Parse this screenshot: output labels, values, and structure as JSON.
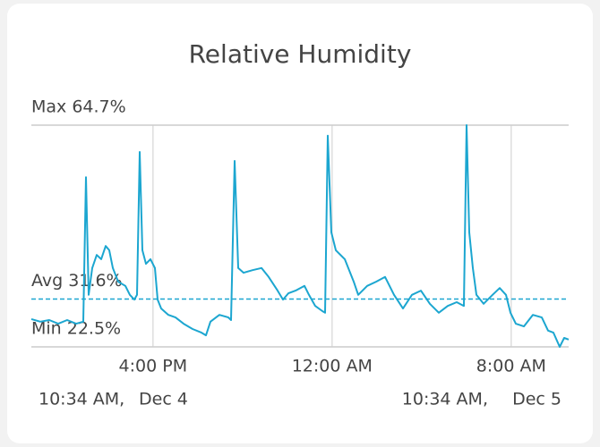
{
  "chart_data": {
    "type": "line",
    "title": "Relative Humidity",
    "color": "#1ca6d0",
    "x": [
      0,
      0.4,
      0.8,
      1.2,
      1.6,
      2.0,
      2.32,
      2.44,
      2.56,
      2.72,
      2.92,
      3.12,
      3.32,
      3.48,
      3.64,
      3.88,
      4.2,
      4.4,
      4.6,
      4.72,
      4.84,
      4.96,
      5.12,
      5.32,
      5.52,
      5.64,
      5.8,
      6.12,
      6.44,
      6.8,
      7.2,
      7.6,
      7.8,
      8.0,
      8.4,
      8.8,
      8.92,
      9.08,
      9.24,
      9.48,
      9.88,
      10.28,
      10.6,
      11.0,
      11.24,
      11.48,
      11.8,
      12.2,
      12.4,
      12.68,
      13.0,
      13.12,
      13.24,
      13.4,
      13.6,
      14.0,
      14.4,
      14.6,
      15.0,
      15.4,
      15.8,
      16.2,
      16.6,
      17.0,
      17.4,
      17.8,
      18.2,
      18.6,
      19.0,
      19.32,
      19.44,
      19.56,
      19.72,
      19.88,
      20.2,
      20.6,
      20.92,
      21.2,
      21.4,
      21.64,
      22.0,
      22.4,
      22.8,
      23.08,
      23.32,
      23.6,
      23.8,
      24.0
    ],
    "values": [
      27.8,
      27.3,
      27.6,
      26.9,
      27.6,
      26.9,
      27.3,
      54.8,
      32.4,
      37.5,
      40.0,
      39.2,
      41.7,
      40.9,
      37.5,
      34.9,
      34.1,
      32.4,
      31.5,
      32.4,
      59.6,
      40.9,
      38.3,
      39.2,
      37.5,
      31.5,
      29.8,
      28.6,
      28.1,
      26.9,
      25.9,
      25.2,
      24.7,
      27.3,
      28.6,
      28.1,
      27.6,
      57.9,
      37.5,
      36.6,
      37.1,
      37.5,
      35.8,
      33.2,
      31.5,
      32.7,
      33.2,
      34.1,
      32.4,
      30.3,
      29.3,
      29.0,
      62.7,
      44.3,
      40.9,
      39.2,
      34.9,
      32.4,
      34.1,
      34.9,
      35.8,
      32.4,
      29.8,
      32.4,
      33.2,
      30.7,
      29.0,
      30.3,
      31.0,
      30.3,
      64.7,
      44.3,
      37.5,
      32.4,
      30.7,
      32.4,
      33.7,
      32.4,
      29.0,
      26.9,
      26.4,
      28.6,
      28.1,
      25.6,
      25.2,
      22.5,
      24.2,
      23.9
    ],
    "xlim": [
      0,
      24
    ],
    "xticks": [
      {
        "value": 5.433,
        "label": "4:00 PM"
      },
      {
        "value": 13.433,
        "label": "12:00 AM"
      },
      {
        "value": 21.433,
        "label": "8:00 AM"
      }
    ],
    "ylim": [
      22.5,
      64.7
    ],
    "ref_lines": [
      {
        "value": 64.7,
        "label": "Max 64.7%",
        "style": "solid"
      },
      {
        "value": 31.6,
        "label": "Avg 31.6%",
        "style": "dashed"
      },
      {
        "value": 22.5,
        "label": "Min 22.5%",
        "style": "solid"
      }
    ],
    "footer": {
      "start_time": "10:34 AM,",
      "start_date": "Dec 4",
      "end_time": "10:34 AM,",
      "end_date": "Dec 5"
    }
  }
}
